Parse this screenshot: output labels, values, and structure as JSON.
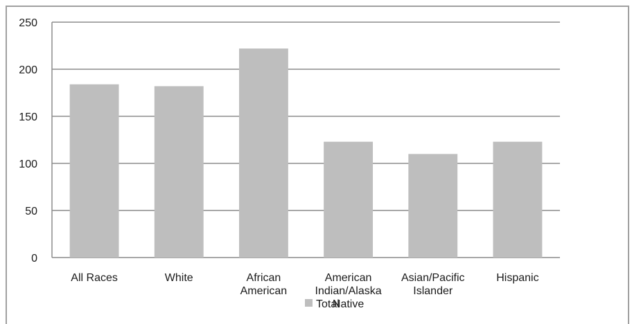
{
  "chart_data": {
    "type": "bar",
    "categories": [
      "All Races",
      "White",
      "African American",
      "American Indian/Alaska Native",
      "Asian/Pacific Islander",
      "Hispanic"
    ],
    "category_label_lines": [
      [
        "All Races"
      ],
      [
        "White"
      ],
      [
        "African",
        "American"
      ],
      [
        "American",
        "Indian/Alaska",
        "Native"
      ],
      [
        "Asian/Pacific",
        "Islander"
      ],
      [
        "Hispanic"
      ]
    ],
    "series": [
      {
        "name": "Total",
        "values": [
          184,
          182,
          222,
          123,
          110,
          123
        ]
      }
    ],
    "ylim": [
      0,
      250
    ],
    "yticks": [
      0,
      50,
      100,
      150,
      200,
      250
    ],
    "grid": true,
    "legend_position": "bottom",
    "title": "",
    "xlabel": "",
    "ylabel": ""
  },
  "colors": {
    "bar": "#bebebe",
    "grid": "#8c8c8c",
    "axis": "#8c8c8c",
    "frame": "#a0a0a0"
  }
}
